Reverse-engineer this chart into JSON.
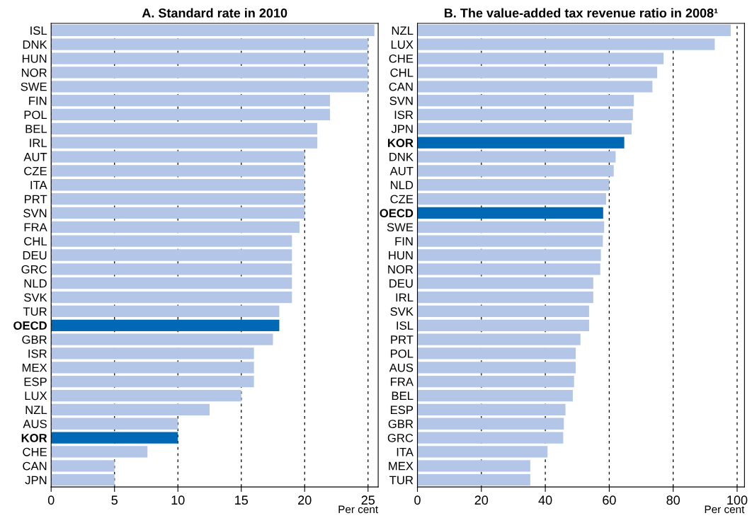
{
  "chart_data": [
    {
      "type": "bar",
      "orientation": "horizontal",
      "title": "A. Standard rate in 2010",
      "xlabel": "Per cent",
      "categories": [
        "ISL",
        "DNK",
        "HUN",
        "NOR",
        "SWE",
        "FIN",
        "POL",
        "BEL",
        "IRL",
        "AUT",
        "CZE",
        "ITA",
        "PRT",
        "SVN",
        "FRA",
        "CHL",
        "DEU",
        "GRC",
        "NLD",
        "SVK",
        "TUR",
        "OECD",
        "GBR",
        "ISR",
        "MEX",
        "ESP",
        "LUX",
        "NZL",
        "AUS",
        "KOR",
        "CHE",
        "CAN",
        "JPN"
      ],
      "values": [
        25.5,
        25,
        25,
        25,
        25,
        22,
        22,
        21,
        21,
        20,
        20,
        20,
        20,
        20,
        19.6,
        19,
        19,
        19,
        19,
        19,
        18,
        18,
        17.5,
        16,
        16,
        16,
        15,
        12.5,
        10,
        10,
        7.6,
        5,
        5
      ],
      "colors": [
        "#b3c6e7",
        "#b3c6e7",
        "#b3c6e7",
        "#b3c6e7",
        "#b3c6e7",
        "#b3c6e7",
        "#b3c6e7",
        "#b3c6e7",
        "#b3c6e7",
        "#b3c6e7",
        "#b3c6e7",
        "#b3c6e7",
        "#b3c6e7",
        "#b3c6e7",
        "#b3c6e7",
        "#b3c6e7",
        "#b3c6e7",
        "#b3c6e7",
        "#b3c6e7",
        "#b3c6e7",
        "#b3c6e7",
        "#0068b4",
        "#b3c6e7",
        "#b3c6e7",
        "#b3c6e7",
        "#b3c6e7",
        "#b3c6e7",
        "#b3c6e7",
        "#b3c6e7",
        "#0068b4",
        "#b3c6e7",
        "#b3c6e7",
        "#b3c6e7"
      ],
      "xlim": [
        0,
        25.8
      ],
      "xticks": [
        0,
        5,
        10,
        15,
        20,
        25
      ],
      "grid": "x",
      "legend": false
    },
    {
      "type": "bar",
      "orientation": "horizontal",
      "title": "B. The value-added tax revenue ratio in 2008¹",
      "xlabel": "Per cent",
      "categories": [
        "NZL",
        "LUX",
        "CHE",
        "CHL",
        "CAN",
        "SVN",
        "ISR",
        "JPN",
        "KOR",
        "DNK",
        "AUT",
        "NLD",
        "CZE",
        "OECD",
        "SWE",
        "FIN",
        "HUN",
        "NOR",
        "DEU",
        "IRL",
        "SVK",
        "ISL",
        "PRT",
        "POL",
        "AUS",
        "FRA",
        "BEL",
        "ESP",
        "GBR",
        "GRC",
        "ITA",
        "MEX",
        "TUR"
      ],
      "values": [
        98,
        93,
        77,
        75,
        73.5,
        67.7,
        67.4,
        67,
        64.7,
        62,
        61.4,
        60,
        59,
        58.1,
        58.4,
        58,
        57.4,
        57.2,
        55,
        55,
        53.7,
        53.7,
        51,
        49.5,
        49.5,
        49,
        48.6,
        46.3,
        45.8,
        45.6,
        40.7,
        35.3,
        35.3
      ],
      "colors": [
        "#b3c6e7",
        "#b3c6e7",
        "#b3c6e7",
        "#b3c6e7",
        "#b3c6e7",
        "#b3c6e7",
        "#b3c6e7",
        "#b3c6e7",
        "#0068b4",
        "#b3c6e7",
        "#b3c6e7",
        "#b3c6e7",
        "#b3c6e7",
        "#0068b4",
        "#b3c6e7",
        "#b3c6e7",
        "#b3c6e7",
        "#b3c6e7",
        "#b3c6e7",
        "#b3c6e7",
        "#b3c6e7",
        "#b3c6e7",
        "#b3c6e7",
        "#b3c6e7",
        "#b3c6e7",
        "#b3c6e7",
        "#b3c6e7",
        "#b3c6e7",
        "#b3c6e7",
        "#b3c6e7",
        "#b3c6e7",
        "#b3c6e7",
        "#b3c6e7"
      ],
      "xlim": [
        0,
        102.3
      ],
      "xticks": [
        0,
        20,
        40,
        60,
        80,
        100
      ],
      "grid": "x",
      "legend": false
    }
  ]
}
